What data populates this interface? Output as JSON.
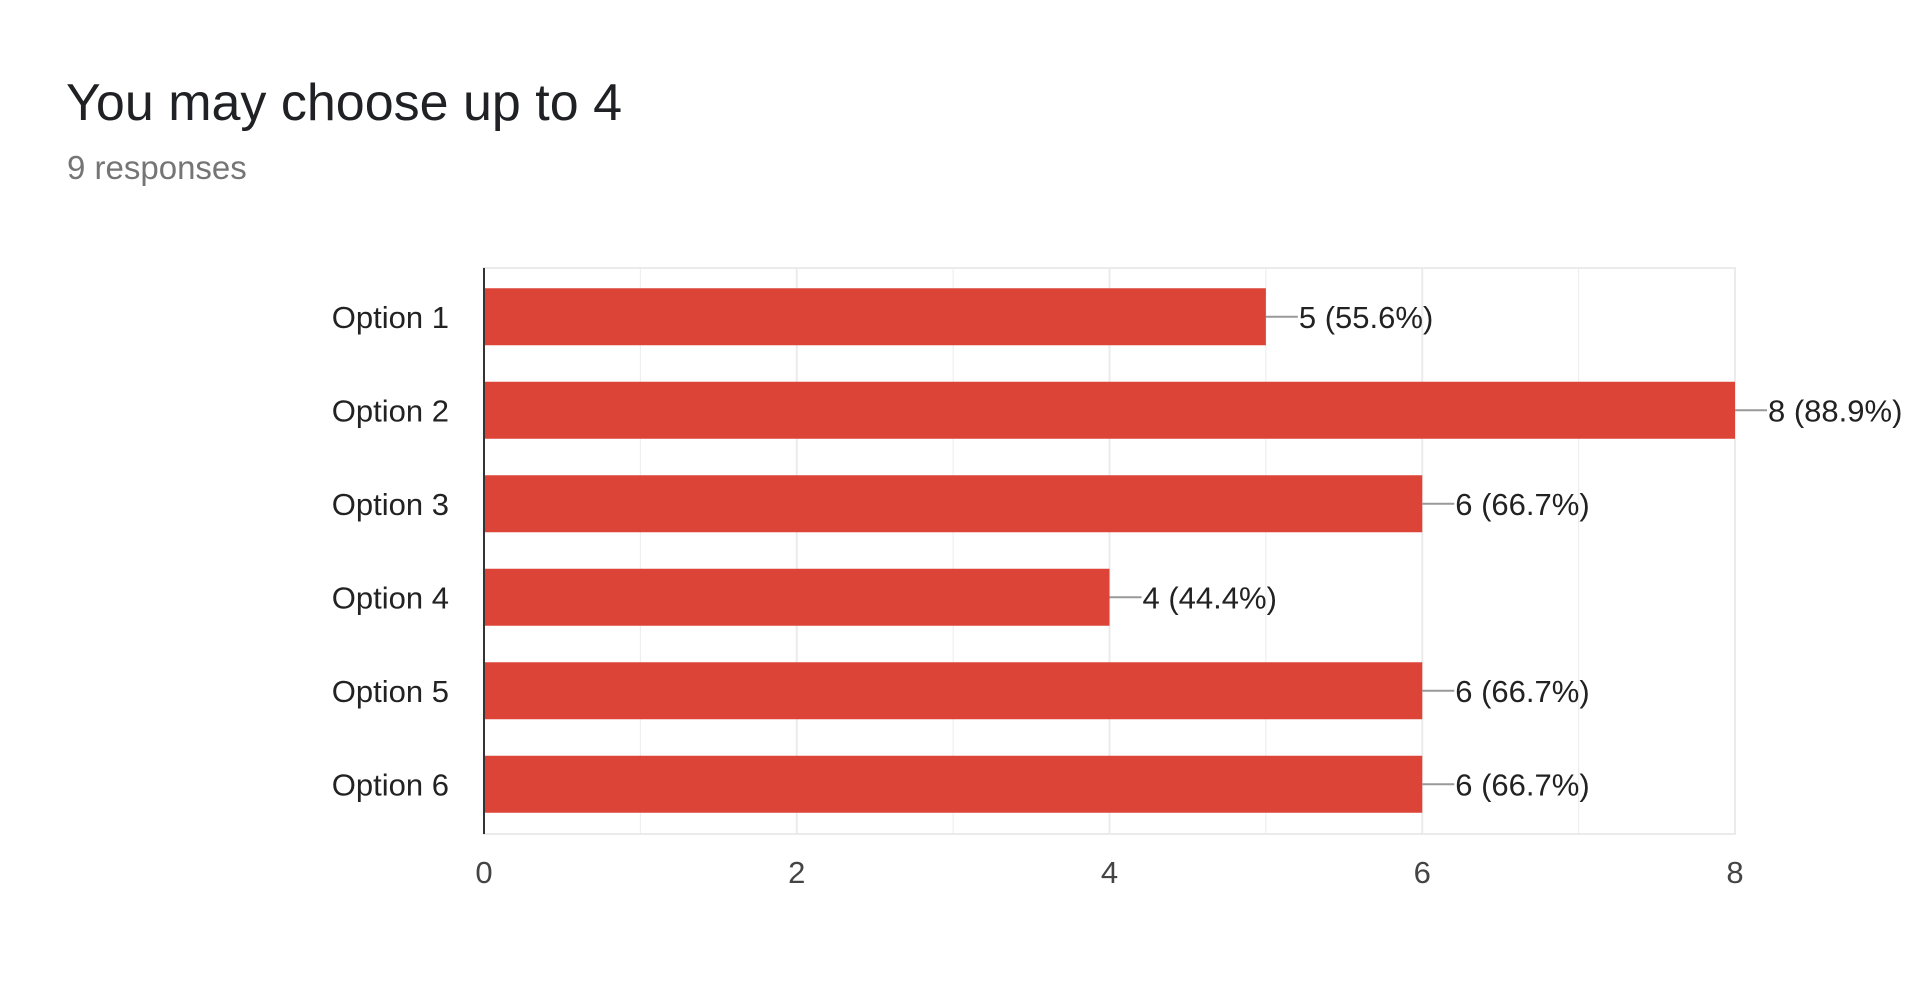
{
  "card": {
    "title": "You may choose up to 4",
    "subtitle": "9 responses"
  },
  "colors": {
    "bar": "#db4437",
    "grid": "#ebebeb",
    "axis": "#333333",
    "text": "#222222",
    "leader": "#999999"
  },
  "chart_data": {
    "type": "bar",
    "orientation": "horizontal",
    "categories": [
      "Option 1",
      "Option 2",
      "Option 3",
      "Option 4",
      "Option 5",
      "Option 6"
    ],
    "values": [
      5,
      8,
      6,
      4,
      6,
      6
    ],
    "data_labels": [
      "5 (55.6%)",
      "8 (88.9%)",
      "6 (66.7%)",
      "4 (44.4%)",
      "6 (66.7%)",
      "6 (66.7%)"
    ],
    "xlim": [
      0,
      8
    ],
    "x_ticks": [
      0,
      2,
      4,
      6,
      8
    ],
    "x_tick_labels": [
      "0",
      "2",
      "4",
      "6",
      "8"
    ],
    "grid": true,
    "legend": "none"
  }
}
